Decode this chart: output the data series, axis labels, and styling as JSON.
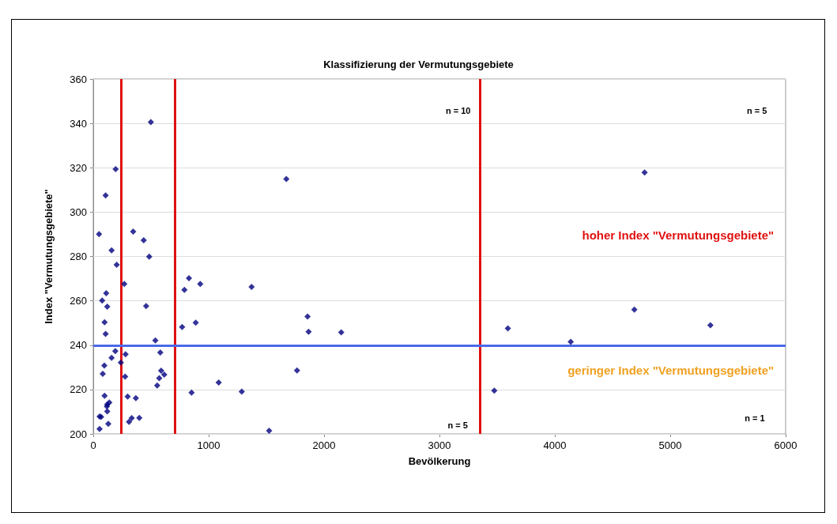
{
  "chart_data": {
    "type": "scatter",
    "title": "Klassifizierung der Vermutungsgebiete",
    "xlabel": "Bevölkerung",
    "ylabel": "Index \"Vermutungsgebiete\"",
    "x": [
      499,
      194,
      107,
      50,
      346,
      437,
      159,
      485,
      203,
      269,
      112,
      77,
      121,
      458,
      98,
      107,
      538,
      770,
      888,
      191,
      159,
      280,
      239,
      581,
      96,
      82,
      276,
      588,
      615,
      572,
      554,
      98,
      298,
      369,
      139,
      121,
      118,
      121,
      55,
      68,
      130,
      310,
      333,
      399,
      55,
      852,
      1087,
      1287,
      1524,
      1673,
      1372,
      1857,
      1866,
      2149,
      1766,
      790,
      829,
      927,
      4778,
      3593,
      4689,
      5348,
      4138,
      3475
    ],
    "values": [
      340.6,
      319.4,
      307.5,
      290.1,
      291.2,
      287.3,
      282.8,
      279.9,
      276.3,
      267.6,
      263.4,
      260.1,
      257.4,
      257.6,
      250.3,
      245.1,
      242.1,
      248.2,
      250.2,
      237.3,
      234.3,
      235.9,
      232.2,
      236.7,
      230.8,
      227.1,
      225.8,
      228.5,
      226.7,
      225.1,
      221.8,
      217.2,
      216.8,
      216.1,
      214.2,
      213.3,
      212.4,
      210.2,
      207.8,
      207.7,
      204.5,
      205.4,
      207.1,
      207.2,
      202.2,
      218.6,
      223.2,
      219.1,
      201.4,
      314.9,
      266.3,
      252.9,
      246.1,
      245.8,
      228.6,
      264.9,
      270.2,
      267.6,
      317.9,
      247.6,
      256,
      249,
      241.5,
      219.5
    ],
    "color": "#000080",
    "marker": "diamond",
    "xlim": [
      0,
      6000
    ],
    "xticks": [
      0,
      1000,
      2000,
      3000,
      4000,
      5000,
      6000
    ],
    "ylim": [
      200,
      360
    ],
    "yticks": [
      200,
      220,
      240,
      260,
      280,
      300,
      320,
      340,
      360
    ],
    "grid": "y",
    "ref_lines": [
      {
        "axis": "x",
        "value": 240,
        "color": "#e01010"
      },
      {
        "axis": "x",
        "value": 706,
        "color": "#e01010"
      },
      {
        "axis": "x",
        "value": 3350,
        "color": "#e01010"
      },
      {
        "axis": "y",
        "value": 240,
        "color": "#4a6ae8"
      }
    ],
    "annotations": [
      "n = 10",
      "n = 5",
      "n = 5",
      "n = 1",
      "hoher Index \"Vermutungsgebiete\"",
      "geringer Index \"Vermutungsgebiete\""
    ]
  }
}
